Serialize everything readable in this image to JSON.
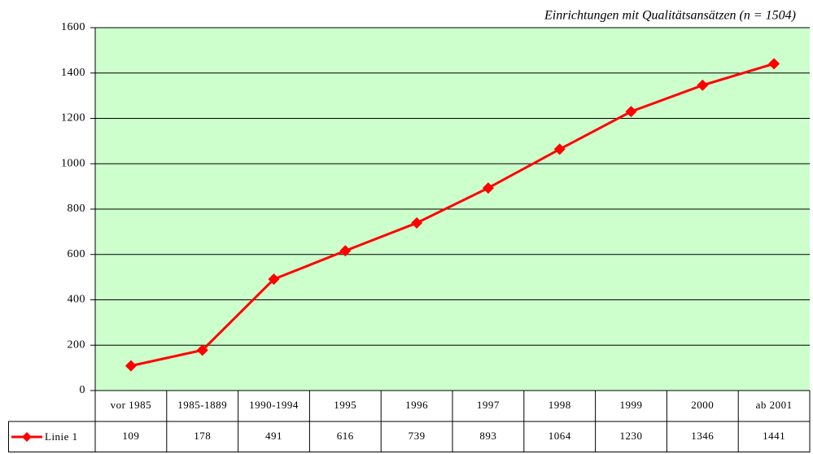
{
  "chart_data": {
    "type": "line",
    "title": "Einrichtungen mit Qualitätsansätzen (n = 1504)",
    "categories": [
      "vor 1985",
      "1985-1889",
      "1990-1994",
      "1995",
      "1996",
      "1997",
      "1998",
      "1999",
      "2000",
      "ab 2001"
    ],
    "series": [
      {
        "name": "Linie 1",
        "color": "#ff0000",
        "values": [
          109,
          178,
          491,
          616,
          739,
          893,
          1064,
          1230,
          1346,
          1441
        ]
      }
    ],
    "ylim": [
      0,
      1600
    ],
    "yticks": [
      0,
      200,
      400,
      600,
      800,
      1000,
      1200,
      1400,
      1600
    ],
    "grid": true,
    "plot_background": "#ccffcc",
    "data_table": true
  }
}
